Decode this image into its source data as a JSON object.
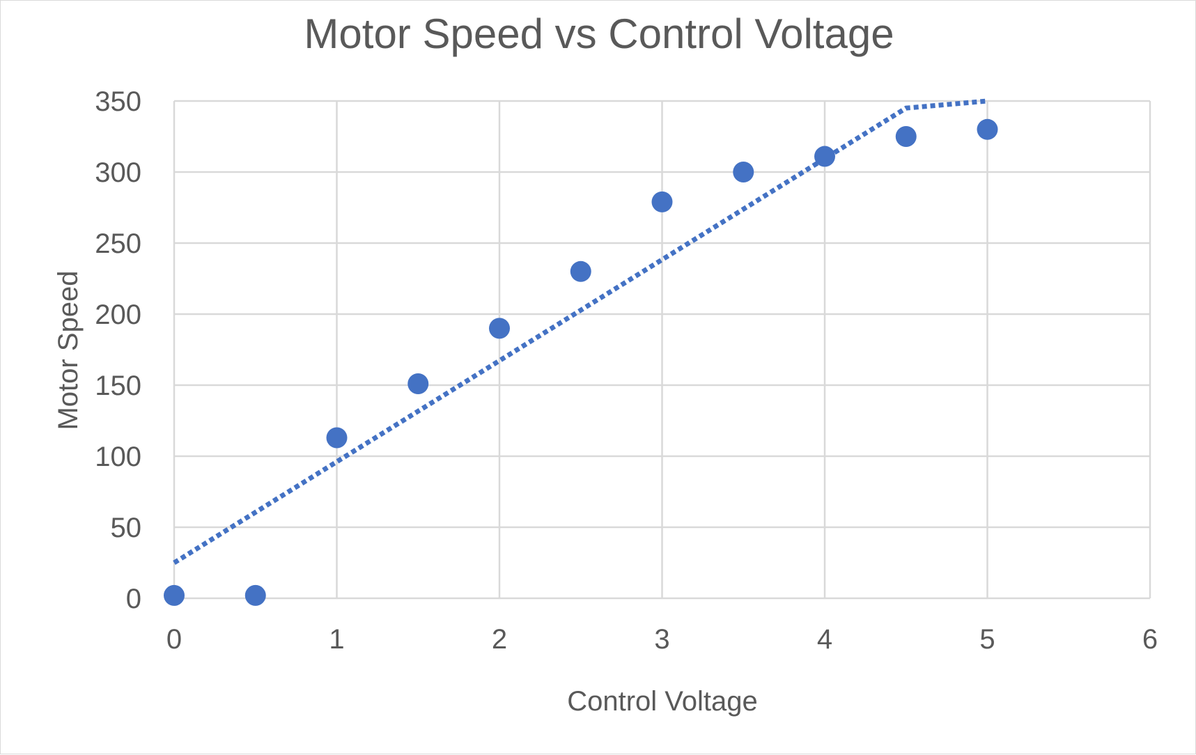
{
  "chart_data": {
    "type": "scatter",
    "title": "Motor Speed vs Control Voltage",
    "xlabel": "Control Voltage",
    "ylabel": "Motor Speed",
    "xlim": [
      0,
      6
    ],
    "ylim": [
      0,
      350
    ],
    "x_ticks": [
      0,
      1,
      2,
      3,
      4,
      5,
      6
    ],
    "y_ticks": [
      0,
      50,
      100,
      150,
      200,
      250,
      300,
      350
    ],
    "grid": true,
    "legend": "none",
    "series": [
      {
        "kind": "markers",
        "color": "#4472C4",
        "points": [
          {
            "x": 0,
            "y": 2
          },
          {
            "x": 0.5,
            "y": 2
          },
          {
            "x": 1,
            "y": 113
          },
          {
            "x": 1.5,
            "y": 151
          },
          {
            "x": 2,
            "y": 190
          },
          {
            "x": 2.5,
            "y": 230
          },
          {
            "x": 3,
            "y": 279
          },
          {
            "x": 3.5,
            "y": 300
          },
          {
            "x": 4,
            "y": 311
          },
          {
            "x": 4.5,
            "y": 325
          },
          {
            "x": 5,
            "y": 330
          }
        ]
      },
      {
        "kind": "dotted-line",
        "color": "#4472C4",
        "points": [
          {
            "x": 0,
            "y": 25
          },
          {
            "x": 4.5,
            "y": 345
          },
          {
            "x": 5,
            "y": 350
          }
        ]
      }
    ]
  }
}
